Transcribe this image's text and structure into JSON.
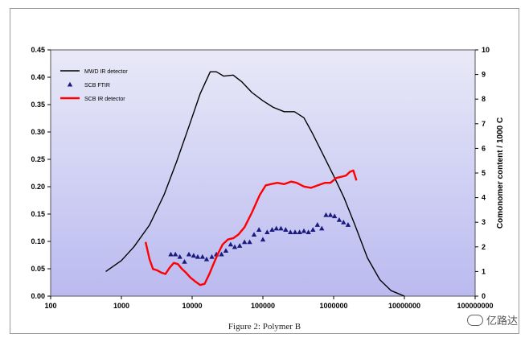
{
  "caption": "Figure 2: Polymer B",
  "watermark": {
    "text": "亿路达",
    "icon": "wechat-icon"
  },
  "colors": {
    "plot_bg_top": "#e9e9f8",
    "plot_bg_bottom": "#babaf0",
    "mwd": "#000000",
    "ftir": "#1a1a80",
    "scb_ir": "#ff0000"
  },
  "chart_data": {
    "type": "line",
    "title": "",
    "xlabel": "",
    "ylabel": "",
    "y2label": "Comonomer content / 1000 C",
    "xscale": "log",
    "xlim": [
      100,
      100000000
    ],
    "ylim": [
      0,
      0.45
    ],
    "y2lim": [
      0,
      10
    ],
    "grid": false,
    "legend_position": "top-left",
    "x_ticks": [
      "100",
      "1000",
      "10000",
      "100000",
      "1000000",
      "10000000",
      "100000000"
    ],
    "y_ticks": [
      "0.00",
      "0.05",
      "0.10",
      "0.15",
      "0.20",
      "0.25",
      "0.30",
      "0.35",
      "0.40",
      "0.45"
    ],
    "y2_ticks": [
      "0",
      "1",
      "2",
      "3",
      "4",
      "5",
      "6",
      "7",
      "8",
      "9",
      "10"
    ],
    "series": [
      {
        "name": "MWD  IR detector",
        "axis": "left",
        "style": "line",
        "color": "#000000",
        "x": [
          600,
          1000,
          1500,
          2500,
          4000,
          6000,
          9000,
          13000,
          18000,
          22000,
          28000,
          38000,
          50000,
          70000,
          100000,
          140000,
          200000,
          280000,
          380000,
          500000,
          700000,
          1000000,
          1400000,
          2000000,
          3000000,
          4500000,
          6500000,
          10000000
        ],
        "y": [
          0.045,
          0.065,
          0.09,
          0.13,
          0.185,
          0.245,
          0.31,
          0.37,
          0.41,
          0.41,
          0.402,
          0.404,
          0.392,
          0.372,
          0.357,
          0.345,
          0.337,
          0.337,
          0.326,
          0.298,
          0.26,
          0.22,
          0.18,
          0.13,
          0.07,
          0.03,
          0.01,
          0.0
        ]
      },
      {
        "name": "SCB FTIR",
        "axis": "right",
        "style": "markers",
        "marker": "triangle",
        "color": "#1a1a80",
        "x": [
          5000,
          5800,
          6700,
          7800,
          9000,
          10500,
          12000,
          14000,
          16000,
          19000,
          22000,
          26000,
          30000,
          35000,
          40000,
          47000,
          55000,
          65000,
          75000,
          88000,
          100000,
          115000,
          135000,
          155000,
          180000,
          210000,
          245000,
          285000,
          330000,
          380000,
          440000,
          510000,
          590000,
          680000,
          780000,
          900000,
          1030000,
          1200000,
          1380000,
          1600000
        ],
        "y": [
          1.7,
          1.7,
          1.6,
          1.4,
          1.7,
          1.65,
          1.6,
          1.6,
          1.5,
          1.6,
          1.7,
          1.7,
          1.85,
          2.1,
          2.0,
          2.05,
          2.2,
          2.2,
          2.5,
          2.7,
          2.3,
          2.6,
          2.7,
          2.75,
          2.75,
          2.7,
          2.6,
          2.6,
          2.6,
          2.65,
          2.6,
          2.7,
          2.9,
          2.75,
          3.3,
          3.3,
          3.25,
          3.1,
          3.0,
          2.9
        ]
      },
      {
        "name": "SCB IR detector",
        "axis": "right",
        "style": "line",
        "color": "#ff0000",
        "x": [
          2200,
          2500,
          2800,
          3200,
          3700,
          4200,
          4800,
          5500,
          6300,
          7200,
          8200,
          9500,
          11000,
          13000,
          15000,
          17500,
          20000,
          23000,
          27000,
          32000,
          38000,
          45000,
          55000,
          70000,
          90000,
          110000,
          130000,
          160000,
          200000,
          250000,
          300000,
          380000,
          480000,
          600000,
          750000,
          900000,
          1100000,
          1300000,
          1500000,
          1700000,
          1900000,
          2100000
        ],
        "y": [
          2.2,
          1.5,
          1.1,
          1.05,
          0.95,
          0.9,
          1.15,
          1.35,
          1.3,
          1.1,
          0.95,
          0.75,
          0.6,
          0.45,
          0.5,
          0.9,
          1.3,
          1.7,
          2.1,
          2.3,
          2.35,
          2.5,
          2.8,
          3.4,
          4.1,
          4.5,
          4.55,
          4.6,
          4.55,
          4.65,
          4.6,
          4.45,
          4.4,
          4.5,
          4.6,
          4.6,
          4.8,
          4.85,
          4.9,
          5.05,
          5.1,
          4.7
        ]
      }
    ]
  }
}
